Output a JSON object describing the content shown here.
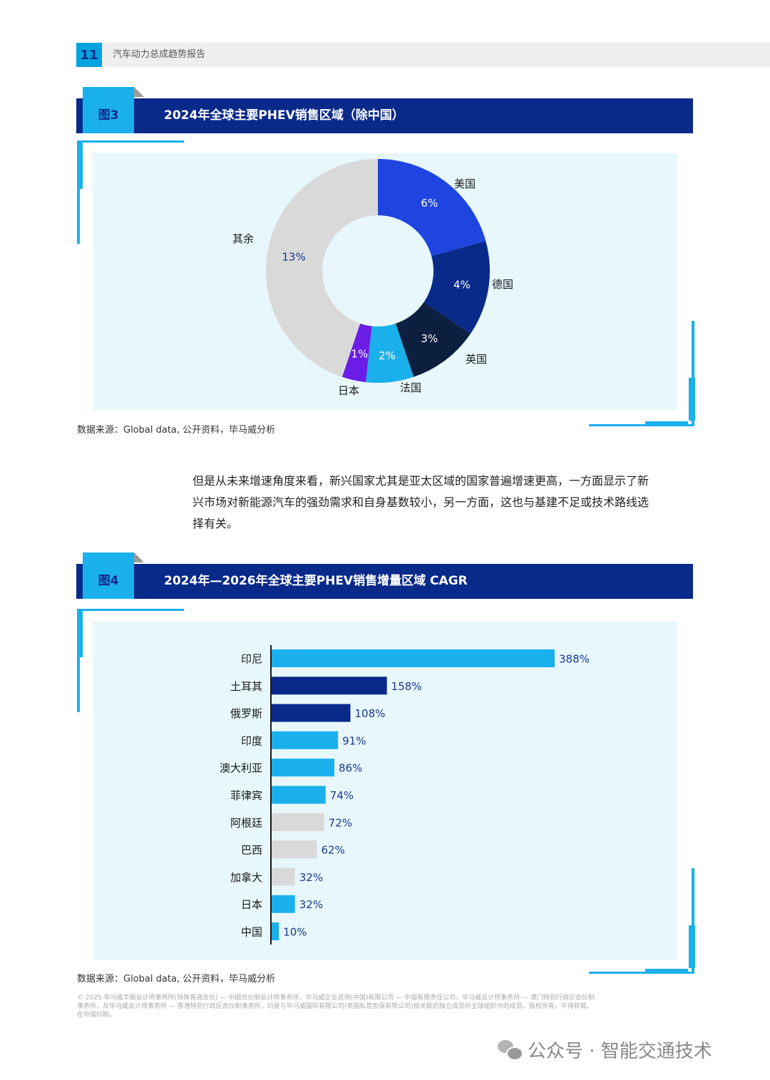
{
  "header": {
    "page_number": "11",
    "report_title": "汽车动力总成趋势报告"
  },
  "figure3": {
    "label": "图3",
    "title": "2024年全球主要PHEV销售区域（除中国）",
    "source": "数据来源：Global data, 公开资料，毕马威分析",
    "chart_data": {
      "type": "pie",
      "donut": true,
      "slices": [
        {
          "name": "美国",
          "value": 6,
          "label": "6%",
          "color": "#1f45e0"
        },
        {
          "name": "德国",
          "value": 4,
          "label": "4%",
          "color": "#0a2a8a"
        },
        {
          "name": "英国",
          "value": 3,
          "label": "3%",
          "color": "#0c1f3f"
        },
        {
          "name": "法国",
          "value": 2,
          "label": "2%",
          "color": "#1ab0ec"
        },
        {
          "name": "日本",
          "value": 1,
          "label": "1%",
          "color": "#6a1de6"
        },
        {
          "name": "其余",
          "value": 13,
          "label": "13%",
          "color": "#d9d9d9"
        }
      ]
    }
  },
  "paragraph": {
    "lines": [
      "但是从未来增速角度来看，新兴国家尤其是亚太区域的国家普遍增速更高，一方面显示了新",
      "兴市场对新能源汽车的强劲需求和自身基数较小，另一方面，这也与基建不足或技术路线选",
      "择有关。"
    ]
  },
  "figure4": {
    "label": "图4",
    "title": "2024年—2026年全球主要PHEV销售增量区域 CAGR",
    "source": "数据来源：Global data, 公开资料，毕马威分析",
    "chart_data": {
      "type": "bar",
      "orientation": "horizontal",
      "categories": [
        "印尼",
        "土耳其",
        "俄罗斯",
        "印度",
        "澳大利亚",
        "菲律宾",
        "阿根廷",
        "巴西",
        "加拿大",
        "日本",
        "中国"
      ],
      "values": [
        388,
        158,
        108,
        91,
        86,
        74,
        72,
        62,
        32,
        32,
        10
      ],
      "labels": [
        "388%",
        "158%",
        "108%",
        "91%",
        "86%",
        "74%",
        "72%",
        "62%",
        "32%",
        "32%",
        "10%"
      ],
      "colors": [
        "#1ab0ec",
        "#0a2a8a",
        "#0a2a8a",
        "#1ab0ec",
        "#1ab0ec",
        "#1ab0ec",
        "#d9d9d9",
        "#d9d9d9",
        "#d9d9d9",
        "#1ab0ec",
        "#1ab0ec"
      ],
      "unit": "%"
    }
  },
  "footer": {
    "lines": [
      "© 2025 毕马威华振会计师事务所(特殊普通合伙) — 中国合伙制会计师事务所，毕马威企业咨询(中国)有限公司 — 中国有限责任公司，毕马威会计师事务所 — 澳门特别行政区合伙制",
      "事务所，及毕马威会计师事务所 — 香港特别行政区合伙制事务所，均是与毕马威国际有限公司(英国私营担保有限公司)相关联的独立成员所全球组织中的成员。版权所有，不得转载。",
      "在中国印刷。"
    ]
  },
  "watermark": {
    "text": "公众号 · 智能交通技术"
  }
}
